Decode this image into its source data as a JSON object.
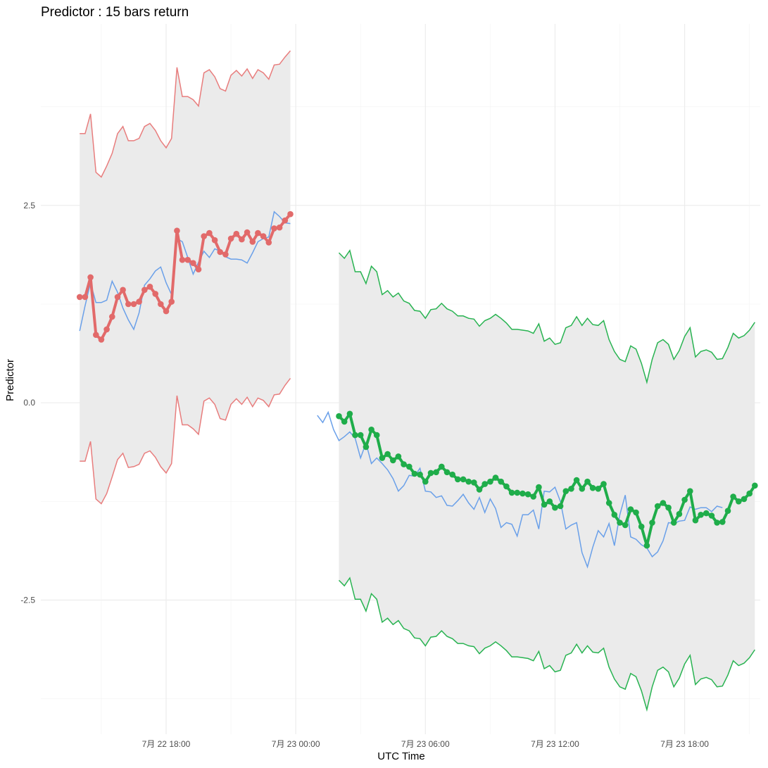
{
  "chart_data": {
    "type": "line",
    "title": "Predictor : 15 bars return",
    "xlabel": "UTC Time",
    "ylabel": "Predictor",
    "x_ticks": [
      "7月 22 18:00",
      "7月 23 00:00",
      "7月 23 06:00",
      "7月 23 12:00",
      "7月 23 18:00"
    ],
    "y_ticks": [
      "2.5",
      "0.0",
      "-2.5"
    ],
    "y_tick_values": [
      2.5,
      0.0,
      -2.5
    ],
    "x_tick_hours": [
      18,
      24,
      30,
      36,
      42
    ],
    "xlim_hours": [
      12.2,
      45.5
    ],
    "ylim": [
      -4.2,
      4.8
    ],
    "grid": true,
    "legend": "none",
    "colors": {
      "actual": "#6aa0e9",
      "predicted_1": "#e26a6a",
      "predicted_2": "#1fad4a",
      "band_1": "#e87d7d",
      "band_2": "#28b351",
      "band_fill": "#ebebeb"
    },
    "series": [
      {
        "role": "band",
        "x_start_hours": 14.0,
        "x_step_hours": 0.25,
        "color_key": "band_1",
        "upper": [
          3.41,
          3.41,
          3.66,
          2.92,
          2.86,
          3.0,
          3.16,
          3.41,
          3.5,
          3.32,
          3.32,
          3.35,
          3.5,
          3.54,
          3.45,
          3.32,
          3.23,
          3.35,
          4.25,
          3.88,
          3.88,
          3.84,
          3.76,
          4.18,
          4.22,
          4.13,
          3.98,
          3.95,
          4.15,
          4.21,
          4.14,
          4.23,
          4.11,
          4.22,
          4.18,
          4.1,
          4.28,
          4.29,
          4.38,
          4.46
        ],
        "lower": [
          -0.74,
          -0.74,
          -0.49,
          -1.22,
          -1.28,
          -1.15,
          -0.94,
          -0.72,
          -0.64,
          -0.82,
          -0.81,
          -0.78,
          -0.64,
          -0.61,
          -0.69,
          -0.81,
          -0.89,
          -0.77,
          0.09,
          -0.28,
          -0.28,
          -0.33,
          -0.4,
          0.02,
          0.06,
          -0.02,
          -0.2,
          -0.22,
          -0.02,
          0.05,
          -0.02,
          0.07,
          -0.05,
          0.06,
          0.03,
          -0.05,
          0.1,
          0.11,
          0.22,
          0.31
        ]
      },
      {
        "role": "band",
        "x_start_hours": 26.0,
        "x_step_hours": 0.25,
        "color_key": "band_2",
        "upper": [
          1.9,
          1.83,
          1.93,
          1.66,
          1.66,
          1.51,
          1.73,
          1.66,
          1.37,
          1.42,
          1.34,
          1.39,
          1.29,
          1.26,
          1.17,
          1.16,
          1.07,
          1.18,
          1.19,
          1.26,
          1.19,
          1.16,
          1.1,
          1.1,
          1.07,
          1.06,
          0.97,
          1.04,
          1.07,
          1.12,
          1.07,
          1.01,
          0.93,
          0.93,
          0.92,
          0.91,
          0.88,
          1.0,
          0.78,
          0.82,
          0.74,
          0.76,
          0.95,
          0.98,
          1.09,
          0.98,
          1.07,
          0.99,
          0.98,
          1.04,
          0.8,
          0.65,
          0.55,
          0.52,
          0.72,
          0.68,
          0.5,
          0.26,
          0.55,
          0.76,
          0.8,
          0.74,
          0.55,
          0.66,
          0.84,
          0.95,
          0.58,
          0.65,
          0.67,
          0.64,
          0.55,
          0.56,
          0.7,
          0.88,
          0.82,
          0.85,
          0.92,
          1.02
        ],
        "lower": [
          -2.25,
          -2.32,
          -2.22,
          -2.49,
          -2.49,
          -2.64,
          -2.42,
          -2.49,
          -2.78,
          -2.73,
          -2.81,
          -2.76,
          -2.86,
          -2.89,
          -2.98,
          -2.99,
          -3.08,
          -2.97,
          -2.96,
          -2.89,
          -2.96,
          -2.99,
          -3.05,
          -3.05,
          -3.08,
          -3.09,
          -3.18,
          -3.11,
          -3.08,
          -3.03,
          -3.08,
          -3.14,
          -3.22,
          -3.22,
          -3.23,
          -3.24,
          -3.27,
          -3.15,
          -3.37,
          -3.33,
          -3.41,
          -3.39,
          -3.2,
          -3.17,
          -3.06,
          -3.17,
          -3.08,
          -3.16,
          -3.17,
          -3.11,
          -3.35,
          -3.5,
          -3.6,
          -3.63,
          -3.43,
          -3.47,
          -3.65,
          -3.89,
          -3.6,
          -3.39,
          -3.35,
          -3.41,
          -3.6,
          -3.49,
          -3.31,
          -3.2,
          -3.57,
          -3.5,
          -3.48,
          -3.51,
          -3.6,
          -3.59,
          -3.45,
          -3.27,
          -3.33,
          -3.3,
          -3.23,
          -3.13
        ]
      },
      {
        "role": "actual",
        "x_start_hours": 14.0,
        "x_step_hours": 0.25,
        "color_key": "actual",
        "values": [
          0.91,
          1.23,
          1.52,
          1.27,
          1.27,
          1.3,
          1.54,
          1.4,
          1.2,
          1.05,
          0.93,
          1.14,
          1.49,
          1.57,
          1.67,
          1.72,
          1.52,
          1.37,
          2.08,
          2.04,
          1.84,
          1.63,
          1.78,
          1.92,
          1.84,
          1.95,
          1.92,
          1.85,
          1.82,
          1.82,
          1.81,
          1.77,
          1.9,
          2.04,
          2.08,
          2.1,
          2.42,
          2.36,
          2.28,
          2.27
        ]
      },
      {
        "role": "actual",
        "x_start_hours": 25.0,
        "x_step_hours": 0.25,
        "color_key": "actual",
        "values": [
          -0.16,
          -0.25,
          -0.12,
          -0.34,
          -0.48,
          -0.43,
          -0.37,
          -0.45,
          -0.7,
          -0.51,
          -0.77,
          -0.7,
          -0.77,
          -0.85,
          -0.96,
          -1.12,
          -1.05,
          -0.92,
          -0.93,
          -0.83,
          -1.12,
          -1.13,
          -1.2,
          -1.18,
          -1.3,
          -1.31,
          -1.24,
          -1.16,
          -1.27,
          -1.35,
          -1.2,
          -1.39,
          -1.22,
          -1.34,
          -1.58,
          -1.52,
          -1.54,
          -1.69,
          -1.42,
          -1.42,
          -1.36,
          -1.6,
          -1.12,
          -1.13,
          -1.07,
          -1.25,
          -1.6,
          -1.55,
          -1.52,
          -1.9,
          -2.08,
          -1.83,
          -1.62,
          -1.7,
          -1.53,
          -1.81,
          -1.42,
          -1.17,
          -1.7,
          -1.73,
          -1.8,
          -1.84,
          -1.95,
          -1.89,
          -1.75,
          -1.52,
          -1.53,
          -1.5,
          -1.49,
          -1.32,
          -1.35,
          -1.33,
          -1.33,
          -1.38,
          -1.31,
          -1.33
        ]
      },
      {
        "role": "predicted",
        "x_start_hours": 14.0,
        "x_step_hours": 0.25,
        "color_key": "predicted_1",
        "values": [
          1.34,
          1.34,
          1.59,
          0.86,
          0.8,
          0.93,
          1.09,
          1.34,
          1.43,
          1.25,
          1.25,
          1.28,
          1.43,
          1.47,
          1.38,
          1.25,
          1.16,
          1.28,
          2.18,
          1.81,
          1.81,
          1.77,
          1.69,
          2.11,
          2.15,
          2.06,
          1.91,
          1.88,
          2.08,
          2.14,
          2.07,
          2.16,
          2.04,
          2.15,
          2.11,
          2.03,
          2.21,
          2.22,
          2.31,
          2.39
        ]
      },
      {
        "role": "predicted",
        "x_start_hours": 26.0,
        "x_step_hours": 0.25,
        "color_key": "predicted_2",
        "values": [
          -0.17,
          -0.24,
          -0.14,
          -0.41,
          -0.41,
          -0.56,
          -0.34,
          -0.41,
          -0.7,
          -0.65,
          -0.73,
          -0.68,
          -0.78,
          -0.81,
          -0.9,
          -0.91,
          -1.0,
          -0.89,
          -0.88,
          -0.81,
          -0.88,
          -0.91,
          -0.97,
          -0.97,
          -1.0,
          -1.01,
          -1.1,
          -1.03,
          -1.0,
          -0.95,
          -1.0,
          -1.06,
          -1.14,
          -1.14,
          -1.15,
          -1.16,
          -1.19,
          -1.07,
          -1.29,
          -1.25,
          -1.33,
          -1.31,
          -1.12,
          -1.09,
          -0.98,
          -1.09,
          -1.0,
          -1.08,
          -1.09,
          -1.03,
          -1.27,
          -1.42,
          -1.52,
          -1.55,
          -1.35,
          -1.39,
          -1.57,
          -1.81,
          -1.52,
          -1.31,
          -1.27,
          -1.33,
          -1.52,
          -1.41,
          -1.23,
          -1.12,
          -1.49,
          -1.42,
          -1.4,
          -1.43,
          -1.52,
          -1.51,
          -1.37,
          -1.19,
          -1.25,
          -1.22,
          -1.15,
          -1.05
        ]
      }
    ]
  }
}
